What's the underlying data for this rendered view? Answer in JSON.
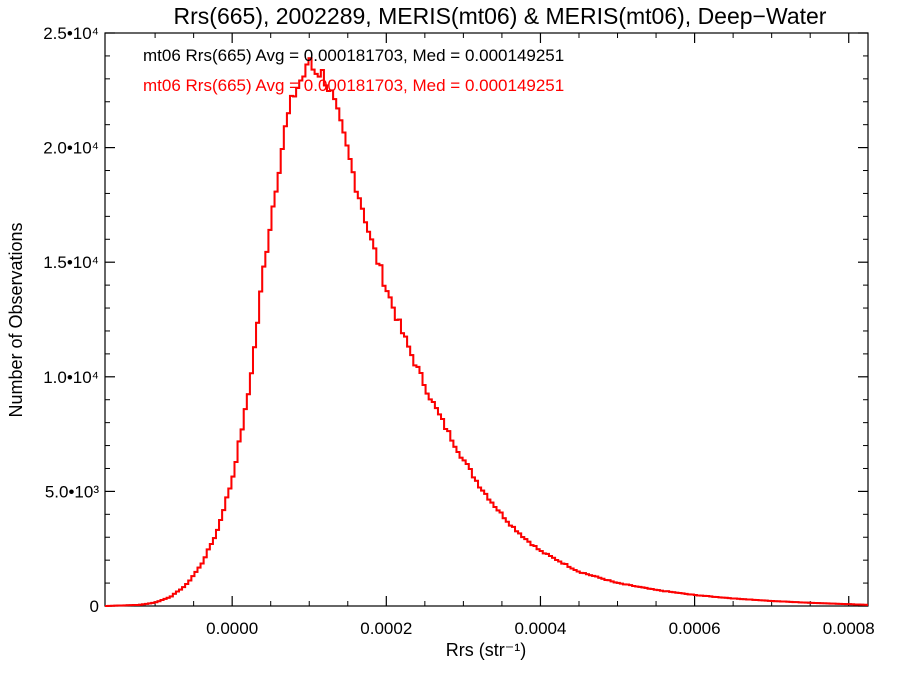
{
  "chart_data": {
    "type": "histogram",
    "title": "Rrs(665), 2002289, MERIS(mt06) & MERIS(mt06), Deep−Water",
    "xlabel": "Rrs (str⁻¹)",
    "ylabel": "Number of Observations",
    "xlim": [
      -0.000165,
      0.000825
    ],
    "ylim": [
      0,
      25000
    ],
    "x_ticks": [
      0,
      0.0002,
      0.0004,
      0.0006,
      0.0008
    ],
    "x_tick_labels": [
      "0.0000",
      "0.0002",
      "0.0004",
      "0.0006",
      "0.0008"
    ],
    "y_ticks": [
      0,
      5000,
      10000,
      15000,
      20000,
      25000
    ],
    "y_tick_labels": [
      "0",
      "5.0•10³",
      "1.0•10⁴",
      "1.5•10⁴",
      "2.0•10⁴",
      "2.5•10⁴"
    ],
    "series": [
      {
        "color": "#000000",
        "stat_label": "mt06 Rrs(665) Avg = 0.000181703, Med = 0.000149251",
        "mean": 0.000181703,
        "median": 0.000149251
      },
      {
        "color": "#ff0000",
        "stat_label": "mt06 Rrs(665) Avg = 0.000181703, Med = 0.000149251",
        "mean": 0.000181703,
        "median": 0.000149251
      }
    ],
    "profile": [
      [
        -0.000165,
        0
      ],
      [
        -0.00012,
        50
      ],
      [
        -0.0001,
        150
      ],
      [
        -8e-05,
        400
      ],
      [
        -6e-05,
        900
      ],
      [
        -4e-05,
        1800
      ],
      [
        -2e-05,
        3200
      ],
      [
        0,
        5500
      ],
      [
        2e-05,
        9000
      ],
      [
        3e-05,
        11500
      ],
      [
        4e-05,
        14500
      ],
      [
        5e-05,
        16800
      ],
      [
        6e-05,
        19000
      ],
      [
        7e-05,
        21000
      ],
      [
        8e-05,
        22300
      ],
      [
        9e-05,
        23000
      ],
      [
        0.0001,
        23500
      ],
      [
        0.00011,
        23400
      ],
      [
        0.00012,
        23100
      ],
      [
        0.00013,
        22200
      ],
      [
        0.00014,
        21000
      ],
      [
        0.00015,
        19800
      ],
      [
        0.00016,
        18500
      ],
      [
        0.00017,
        17300
      ],
      [
        0.00018,
        16000
      ],
      [
        0.0002,
        13900
      ],
      [
        0.00022,
        12000
      ],
      [
        0.00024,
        10400
      ],
      [
        0.00026,
        8900
      ],
      [
        0.00028,
        7600
      ],
      [
        0.0003,
        6400
      ],
      [
        0.00032,
        5300
      ],
      [
        0.00034,
        4400
      ],
      [
        0.00036,
        3600
      ],
      [
        0.00038,
        2950
      ],
      [
        0.0004,
        2400
      ],
      [
        0.00045,
        1500
      ],
      [
        0.0005,
        1000
      ],
      [
        0.00055,
        700
      ],
      [
        0.0006,
        480
      ],
      [
        0.00065,
        330
      ],
      [
        0.0007,
        220
      ],
      [
        0.00075,
        140
      ],
      [
        0.0008,
        80
      ],
      [
        0.000825,
        50
      ]
    ],
    "peak": {
      "x": 0.0001,
      "y": 23900
    },
    "bin_width": 4e-06
  }
}
